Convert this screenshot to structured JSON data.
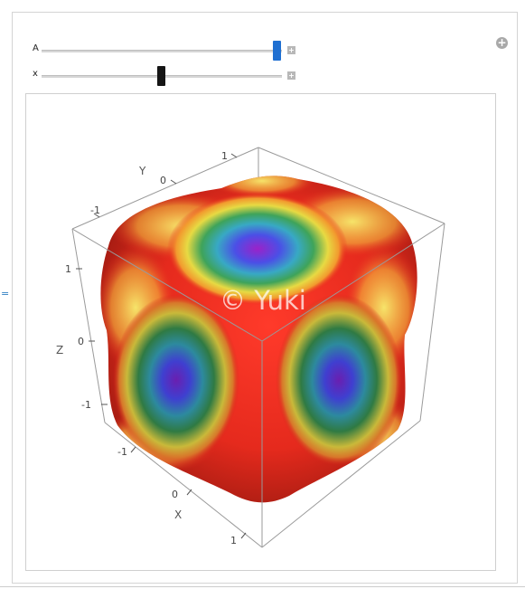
{
  "controls": {
    "slider_a": {
      "label": "A",
      "value_fraction": 0.98
    },
    "slider_x": {
      "label": "x",
      "value_fraction": 0.5
    },
    "plus_symbol": "+"
  },
  "output_marker": "=",
  "plot": {
    "axis_y": {
      "label": "Y",
      "ticks": [
        "-1",
        "0",
        "1"
      ]
    },
    "axis_z": {
      "label": "Z",
      "ticks": [
        "1",
        "0",
        "-1"
      ]
    },
    "axis_x": {
      "label": "X",
      "ticks": [
        "-1",
        "0",
        "1"
      ]
    },
    "watermark": "© Yuki",
    "colors": {
      "red": "#e6241c",
      "yellow": "#f2e14a",
      "green": "#3ea35a",
      "blue": "#4a55e0",
      "violet": "#8a2bc8"
    }
  }
}
